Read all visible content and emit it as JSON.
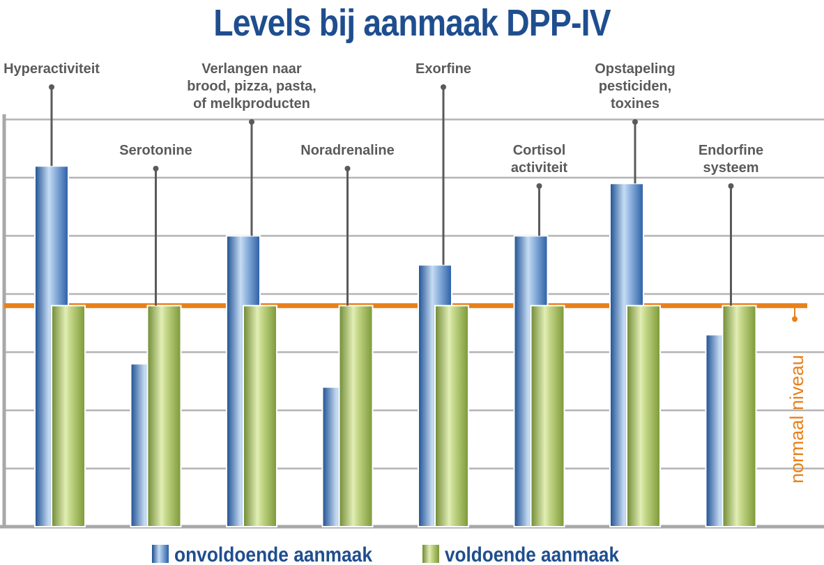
{
  "chart_data": {
    "type": "bar",
    "title": "Levels bij aanmaak DPP-IV",
    "categories": [
      [
        "Hyperactiviteit"
      ],
      [
        "Serotonine"
      ],
      [
        "Verlangen naar",
        "brood, pizza, pasta,",
        "of melkproducten"
      ],
      [
        "Noradrenaline"
      ],
      [
        "Exorfine"
      ],
      [
        "Cortisol",
        "activiteit"
      ],
      [
        "Opstapeling",
        "pesticiden,",
        "toxines"
      ],
      [
        "Endorfine",
        "systeem"
      ]
    ],
    "series": [
      {
        "name": "onvoldoende aanmaak",
        "values": [
          6.2,
          2.8,
          5.0,
          2.4,
          4.5,
          5.0,
          5.9,
          3.3
        ],
        "color": "#2d62a8"
      },
      {
        "name": "voldoende aanmaak",
        "values": [
          3.8,
          3.8,
          3.8,
          3.8,
          3.8,
          3.8,
          3.8,
          3.8
        ],
        "color": "#8aa443"
      }
    ],
    "reference_line": {
      "label": "normaal niveau",
      "value": 3.8,
      "color": "#e8801a"
    },
    "ylim": [
      0,
      7
    ],
    "grid": true,
    "legend_position": "bottom"
  }
}
